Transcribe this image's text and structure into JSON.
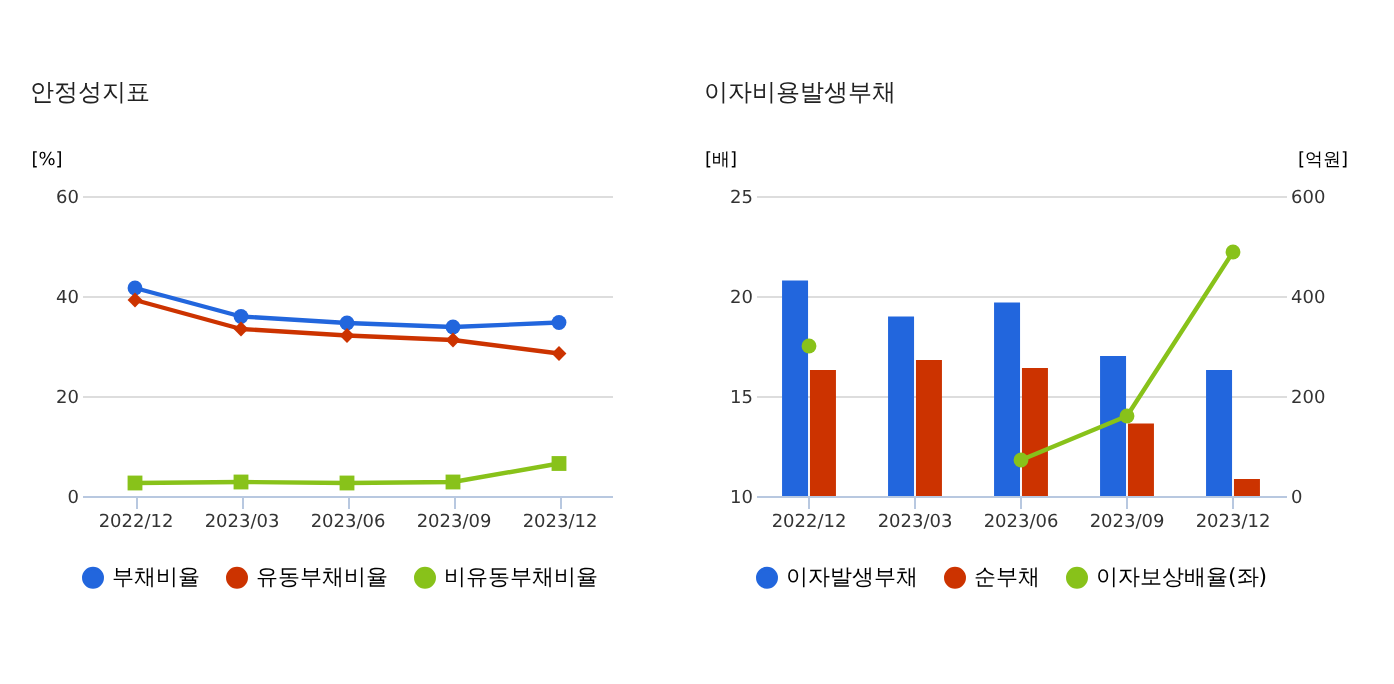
{
  "chart_data": [
    {
      "type": "line",
      "title": "안정성지표",
      "ylabel": "[%]",
      "categories": [
        "2022/12",
        "2023/03",
        "2023/06",
        "2023/09",
        "2023/12"
      ],
      "ylim": [
        0,
        60
      ],
      "yticks": [
        0,
        20,
        40,
        60
      ],
      "grid": "y",
      "legend": "bottom",
      "series": [
        {
          "name": "부채비율",
          "color": "#2266dd",
          "marker": "circle",
          "values": [
            41.6,
            35.9,
            34.6,
            33.8,
            34.7
          ]
        },
        {
          "name": "유동부채비율",
          "color": "#cc3300",
          "marker": "diamond",
          "values": [
            39.2,
            33.4,
            32.1,
            31.2,
            28.5
          ]
        },
        {
          "name": "비유동부채비율",
          "color": "#88c21a",
          "marker": "square",
          "values": [
            2.6,
            2.8,
            2.6,
            2.8,
            6.5
          ]
        }
      ]
    },
    {
      "type": "bar",
      "title": "이자비용발생부채",
      "ylabel": "[배]",
      "y2label": "[억원]",
      "categories": [
        "2022/12",
        "2023/03",
        "2023/06",
        "2023/09",
        "2023/12"
      ],
      "ylim": [
        10,
        25
      ],
      "yticks": [
        10,
        15,
        20,
        25
      ],
      "y2lim": [
        0,
        600
      ],
      "y2ticks": [
        0,
        200,
        400,
        600
      ],
      "grid": "y",
      "legend": "bottom",
      "series": [
        {
          "name": "이자발생부채",
          "color": "#2266dd",
          "axis": "y2",
          "values": [
            431,
            359,
            387,
            280,
            252
          ]
        },
        {
          "name": "순부채",
          "color": "#cc3300",
          "axis": "y2",
          "values": [
            252,
            272,
            256,
            145,
            34
          ]
        },
        {
          "name": "이자보상배율(좌)",
          "color": "#88c21a",
          "type": "line",
          "marker": "circle",
          "values": [
            17.5,
            null,
            11.8,
            14.0,
            22.2
          ]
        }
      ]
    }
  ]
}
